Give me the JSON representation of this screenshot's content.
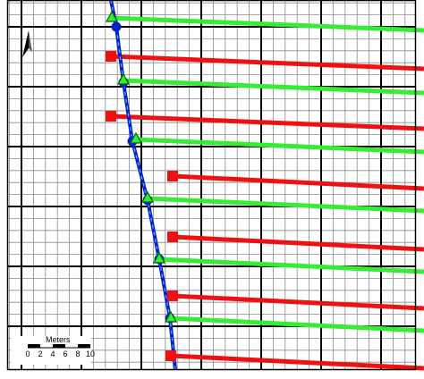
{
  "colors": {
    "grid_minor": "#8a8a8a",
    "grid_major": "#000000",
    "well_line": "#0022cc",
    "well_dash": "#66aaff",
    "green_line": "#33ee33",
    "red_line": "#ee1111",
    "triangle_stroke": "#006600",
    "north_arrow": "#000000",
    "border": "#000000"
  },
  "icons": {
    "north_arrow": "north-arrow-icon",
    "well_marker": "circle-marker",
    "segment_marker": "triangle-marker",
    "red_marker": "square-marker"
  },
  "scale_bar": {
    "title": "Meters",
    "ticks": [
      "0",
      "2",
      "4",
      "6",
      "8",
      "10"
    ]
  }
}
